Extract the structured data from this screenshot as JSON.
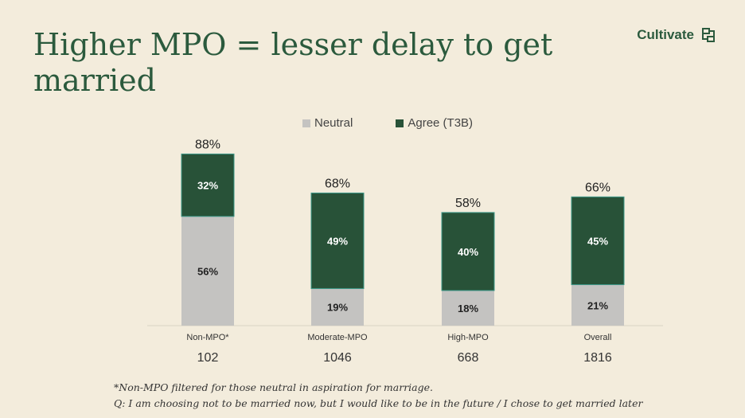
{
  "title": "Higher MPO = lesser delay to get married",
  "brand": "Cultivate",
  "footnote": "*Non-MPO filtered for those neutral in aspiration for marriage.",
  "question": "Q: I am choosing not to be married now, but I would like to be in the future / I chose to get married later",
  "colors": {
    "neutral": "#c4c3c1",
    "agree": "#285238",
    "text": "#2b5a3d"
  },
  "chart_data": {
    "type": "bar",
    "stacked": true,
    "categories": [
      "Non-MPO*",
      "Moderate-MPO",
      "High-MPO",
      "Overall"
    ],
    "base_sizes": [
      "102",
      "1046",
      "668",
      "1816"
    ],
    "series": [
      {
        "name": "Neutral",
        "values": [
          56,
          19,
          18,
          21
        ],
        "labels": [
          "56%",
          "19%",
          "18%",
          "21%"
        ]
      },
      {
        "name": "Agree (T3B)",
        "values": [
          32,
          49,
          40,
          45
        ],
        "labels": [
          "32%",
          "49%",
          "40%",
          "45%"
        ]
      }
    ],
    "totals": [
      "88%",
      "68%",
      "58%",
      "66%"
    ],
    "ylim": [
      0,
      100
    ],
    "legend_position": "top-center"
  }
}
